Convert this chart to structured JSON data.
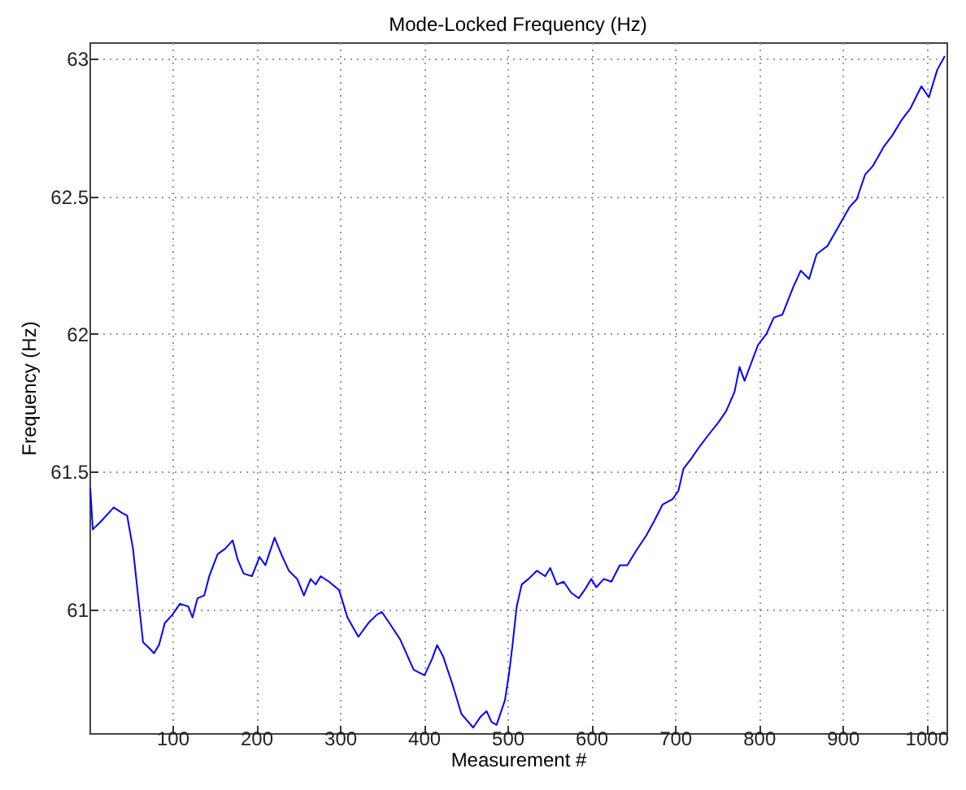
{
  "chart_data": {
    "type": "line",
    "title": "Mode-Locked Frequency (Hz)",
    "xlabel": "Measurement #",
    "ylabel": "Frequency (Hz)",
    "x": [
      2,
      5,
      15,
      24,
      30,
      40,
      46,
      53,
      59,
      65,
      72,
      78,
      84,
      91,
      100,
      109,
      119,
      124,
      130,
      138,
      144,
      154,
      163,
      172,
      178,
      185,
      195,
      204,
      211,
      222,
      230,
      239,
      249,
      257,
      265,
      271,
      277,
      287,
      299,
      309,
      322,
      334,
      344,
      350,
      359,
      372,
      388,
      401,
      410,
      416,
      423,
      434,
      445,
      459,
      468,
      475,
      481,
      487,
      497,
      502,
      506,
      511,
      517,
      525,
      535,
      545,
      551,
      559,
      567,
      576,
      585,
      592,
      600,
      606,
      615,
      624,
      634,
      643,
      653,
      666,
      675,
      685,
      697,
      704,
      710,
      720,
      729,
      739,
      752,
      761,
      771,
      777,
      783,
      799,
      809,
      818,
      828,
      841,
      850,
      860,
      869,
      882,
      895,
      908,
      917,
      927,
      936,
      949,
      959,
      971,
      981,
      994,
      1003,
      1013,
      1022
    ],
    "series": [
      {
        "color": "#0000ff",
        "values": [
          61.44,
          61.29,
          61.32,
          61.35,
          61.37,
          61.35,
          61.34,
          61.22,
          61.05,
          60.88,
          60.86,
          60.84,
          60.87,
          60.95,
          60.98,
          61.02,
          61.01,
          60.97,
          61.04,
          61.05,
          61.12,
          61.2,
          61.22,
          61.25,
          61.18,
          61.13,
          61.12,
          61.19,
          61.16,
          61.26,
          61.2,
          61.14,
          61.11,
          61.05,
          61.11,
          61.09,
          61.12,
          61.1,
          61.07,
          60.97,
          60.9,
          60.95,
          60.98,
          60.99,
          60.95,
          60.89,
          60.78,
          60.76,
          60.82,
          60.87,
          60.83,
          60.73,
          60.62,
          60.57,
          60.61,
          60.63,
          60.59,
          60.58,
          60.67,
          60.77,
          60.87,
          61.01,
          61.09,
          61.11,
          61.14,
          61.12,
          61.15,
          61.09,
          61.1,
          61.06,
          61.04,
          61.07,
          61.11,
          61.08,
          61.11,
          61.1,
          61.16,
          61.16,
          61.21,
          61.27,
          61.32,
          61.38,
          61.4,
          61.43,
          61.51,
          61.55,
          61.59,
          61.63,
          61.68,
          61.72,
          61.79,
          61.88,
          61.83,
          61.96,
          62.0,
          62.06,
          62.07,
          62.17,
          62.23,
          62.2,
          62.29,
          62.32,
          62.39,
          62.46,
          62.49,
          62.58,
          62.61,
          62.68,
          62.72,
          62.78,
          62.82,
          62.9,
          62.86,
          62.96,
          63.01
        ]
      }
    ],
    "xlim": [
      1,
      1024
    ],
    "ylim": [
      60.55,
      63.06
    ],
    "xticks": [
      100,
      200,
      300,
      400,
      500,
      600,
      700,
      800,
      900,
      1000
    ],
    "yticks": [
      61,
      61.5,
      62,
      62.5,
      63
    ],
    "grid": true,
    "legend": false
  }
}
